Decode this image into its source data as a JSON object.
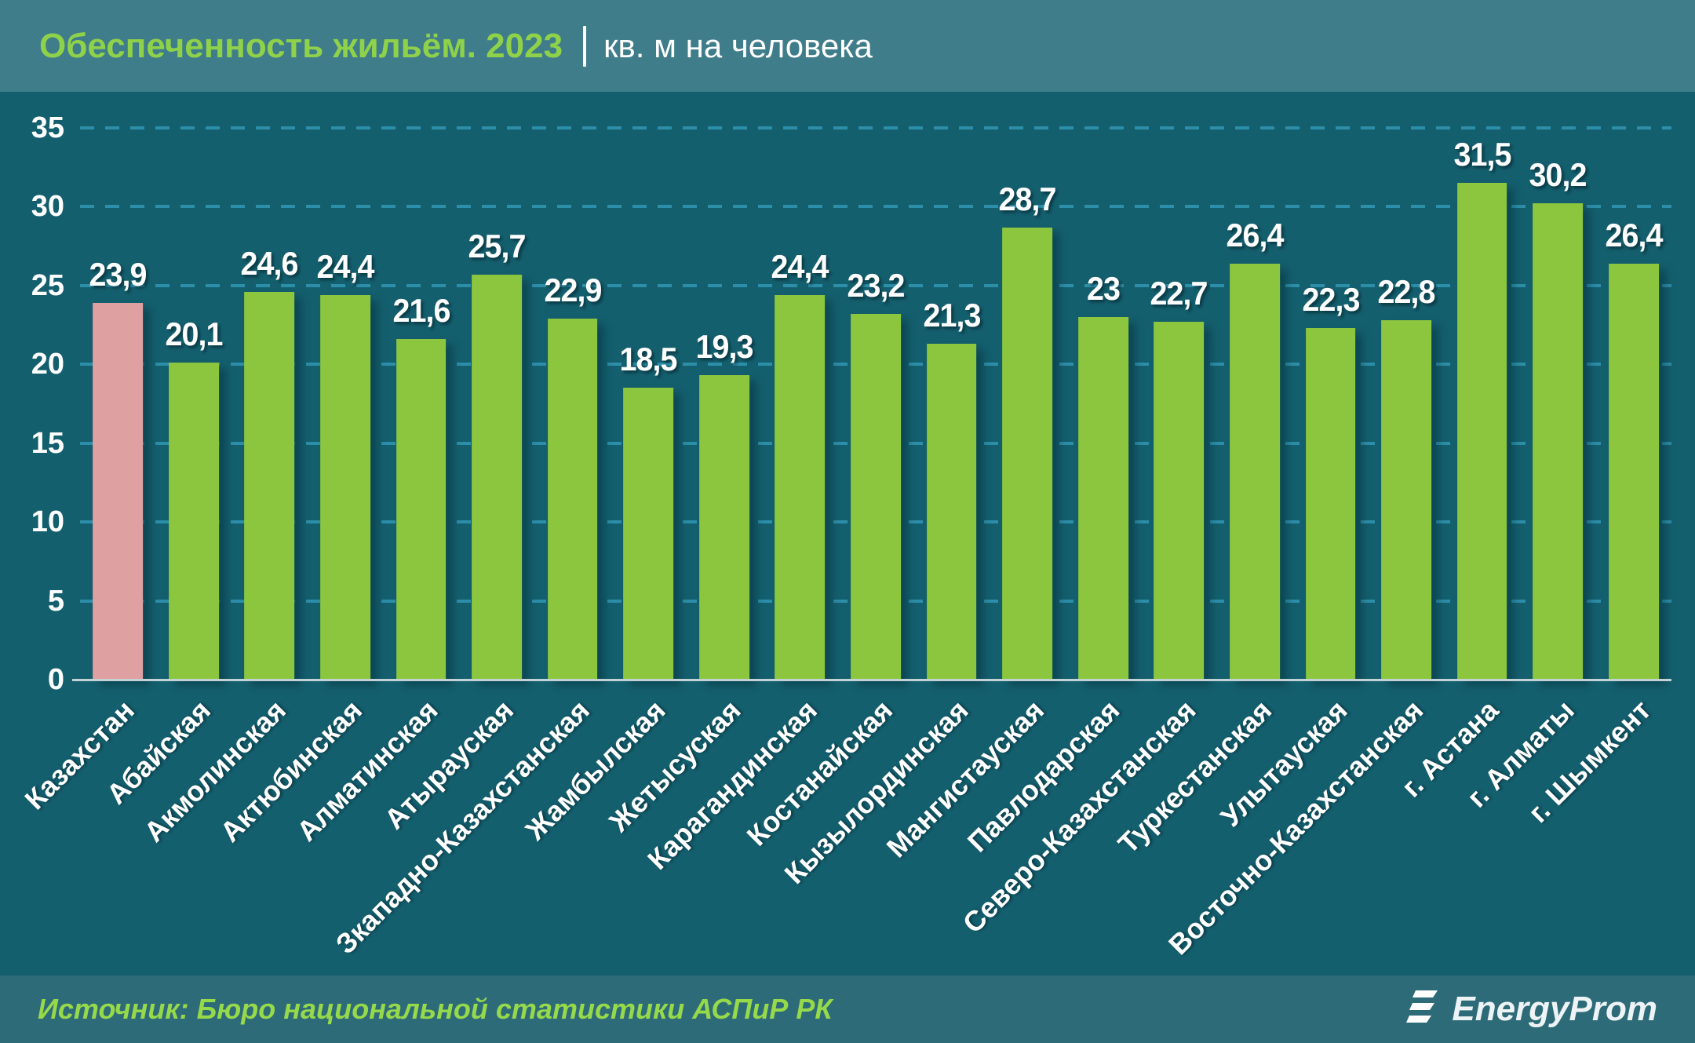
{
  "header": {
    "title": "Обеспеченность жильём. 2023",
    "units": "кв. м на человека"
  },
  "footer": {
    "source": "Источник: Бюро национальной статистики АСПиР РК",
    "logo_text": "EnergyProm"
  },
  "colors": {
    "header_bg": "#3f7d8b",
    "chart_bg": "#145f6e",
    "footer_bg": "#2e6b79",
    "bar_green": "#8cc63e",
    "bar_highlight_pink": "#dfa0a2",
    "gridline": "#2e91ac",
    "title_green": "#8fd24a",
    "source_green": "#96d94a",
    "text_white": "#ffffff"
  },
  "chart_data": {
    "type": "bar",
    "title": "Обеспеченность жильём. 2023",
    "subtitle": "кв. м на человека",
    "categories": [
      "Казахстан",
      "Абайская",
      "Акмолинская",
      "Актюбинская",
      "Алматинская",
      "Атырауская",
      "Зкападно-Казахстанская",
      "Жамбылская",
      "Жетысуская",
      "Карагандинская",
      "Костанайская",
      "Кызылординская",
      "Мангистауская",
      "Павлодарская",
      "Северо-Казахстанская",
      "Туркестанская",
      "Улытауская",
      "Восточно-Казахстанская",
      "г. Астана",
      "г. Алматы",
      "г. Шымкент"
    ],
    "values": [
      23.9,
      20.1,
      24.6,
      24.4,
      21.6,
      25.7,
      22.9,
      18.5,
      19.3,
      24.4,
      23.2,
      21.3,
      28.7,
      23,
      22.7,
      26.4,
      22.3,
      22.8,
      31.5,
      30.2,
      26.4
    ],
    "value_labels": [
      "23,9",
      "20,1",
      "24,6",
      "24,4",
      "21,6",
      "25,7",
      "22,9",
      "18,5",
      "19,3",
      "24,4",
      "23,2",
      "21,3",
      "28,7",
      "23",
      "22,7",
      "26,4",
      "22,3",
      "22,8",
      "31,5",
      "30,2",
      "26,4"
    ],
    "highlight_index": 0,
    "ylim": [
      0,
      35
    ],
    "yticks": [
      0,
      5,
      10,
      15,
      20,
      25,
      30,
      35
    ],
    "ytick_labels": [
      "0",
      "5",
      "10",
      "15",
      "20",
      "25",
      "30",
      "35"
    ],
    "grid": "dashed horizontal",
    "legend": "none"
  }
}
